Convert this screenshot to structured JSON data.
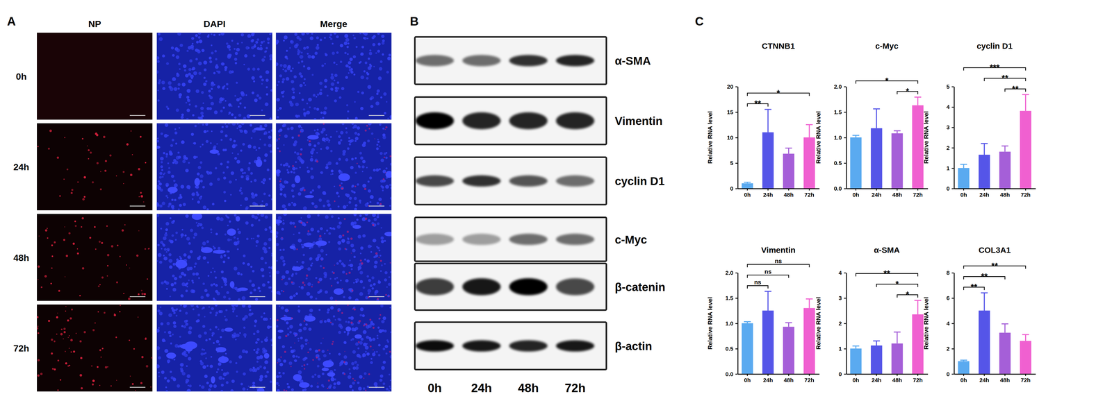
{
  "figure": {
    "panel_labels": [
      "A",
      "B",
      "C"
    ]
  },
  "panel_a": {
    "columns": [
      "NP",
      "DAPI",
      "Merge"
    ],
    "rows": [
      "0h",
      "24h",
      "48h",
      "72h"
    ]
  },
  "panel_b": {
    "lanes": [
      "0h",
      "24h",
      "48h",
      "72h"
    ],
    "proteins": [
      {
        "name": "α-SMA",
        "intensity": [
          0.55,
          0.55,
          0.8,
          0.85
        ]
      },
      {
        "name": "Vimentin",
        "intensity": [
          1,
          0.85,
          0.85,
          0.85
        ]
      },
      {
        "name": "cyclin D1",
        "intensity": [
          0.7,
          0.8,
          0.65,
          0.55
        ]
      },
      {
        "name": "c-Myc",
        "intensity": [
          0.35,
          0.35,
          0.55,
          0.55
        ]
      },
      {
        "name": "β-catenin",
        "intensity": [
          0.75,
          0.9,
          1,
          0.7
        ]
      },
      {
        "name": "β-actin",
        "intensity": [
          0.95,
          0.9,
          0.85,
          0.9
        ]
      }
    ]
  },
  "chart_data": [
    {
      "type": "bar",
      "title": "CTNNB1",
      "y_label": "Relative RNA level",
      "categories": [
        "0h",
        "24h",
        "48h",
        "72h"
      ],
      "values": [
        1.0,
        11.0,
        6.8,
        10.0
      ],
      "errors": [
        0.2,
        4.5,
        1.1,
        2.5
      ],
      "colors": [
        "#5aaaf0",
        "#5555e8",
        "#a55fd8",
        "#f060d0"
      ],
      "ylim": [
        0,
        20
      ],
      "yticks": [
        0,
        5,
        10,
        15,
        20
      ],
      "significance": [
        {
          "pair": [
            "0h",
            "24h"
          ],
          "label": "**"
        },
        {
          "pair": [
            "0h",
            "72h"
          ],
          "label": "*"
        }
      ]
    },
    {
      "type": "bar",
      "title": "c-Myc",
      "y_label": "Relative RNA level",
      "categories": [
        "0h",
        "24h",
        "48h",
        "72h"
      ],
      "values": [
        1.0,
        1.18,
        1.08,
        1.63
      ],
      "errors": [
        0.04,
        0.38,
        0.05,
        0.16
      ],
      "colors": [
        "#5aaaf0",
        "#5555e8",
        "#a55fd8",
        "#f060d0"
      ],
      "ylim": [
        0,
        2
      ],
      "yticks": [
        {
          "value": 0,
          "label": "0.0"
        },
        0.5,
        {
          "value": 1,
          "label": "1.0"
        },
        1.5,
        {
          "value": 2,
          "label": "2.0"
        }
      ],
      "significance": [
        {
          "pair": [
            "48h",
            "72h"
          ],
          "label": "*"
        },
        {
          "pair": [
            "0h",
            "72h"
          ],
          "label": "*"
        }
      ]
    },
    {
      "type": "bar",
      "title": "cyclin D1",
      "y_label": "Relative RNA level",
      "categories": [
        "0h",
        "24h",
        "48h",
        "72h"
      ],
      "values": [
        1.0,
        1.65,
        1.8,
        3.8
      ],
      "errors": [
        0.18,
        0.55,
        0.28,
        0.8
      ],
      "colors": [
        "#5aaaf0",
        "#5555e8",
        "#a55fd8",
        "#f060d0"
      ],
      "ylim": [
        0,
        5
      ],
      "yticks": [
        0,
        1,
        2,
        3,
        4,
        5
      ],
      "significance": [
        {
          "pair": [
            "48h",
            "72h"
          ],
          "label": "**"
        },
        {
          "pair": [
            "24h",
            "72h"
          ],
          "label": "**"
        },
        {
          "pair": [
            "0h",
            "72h"
          ],
          "label": "***"
        }
      ]
    },
    {
      "type": "bar",
      "title": "Vimentin",
      "y_label": "Relative RNA level",
      "categories": [
        "0h",
        "24h",
        "48h",
        "72h"
      ],
      "values": [
        1.0,
        1.25,
        0.93,
        1.3
      ],
      "errors": [
        0.03,
        0.38,
        0.08,
        0.18
      ],
      "colors": [
        "#5aaaf0",
        "#5555e8",
        "#a55fd8",
        "#f060d0"
      ],
      "ylim": [
        0,
        2
      ],
      "yticks": [
        {
          "value": 0,
          "label": "0.0"
        },
        0.5,
        {
          "value": 1,
          "label": "1.0"
        },
        1.5,
        {
          "value": 2,
          "label": "2.0"
        }
      ],
      "significance": [
        {
          "pair": [
            "0h",
            "24h"
          ],
          "label": "ns"
        },
        {
          "pair": [
            "0h",
            "48h"
          ],
          "label": "ns"
        },
        {
          "pair": [
            "0h",
            "72h"
          ],
          "label": "ns"
        }
      ]
    },
    {
      "type": "bar",
      "title": "α-SMA",
      "y_label": "Relative RNA level",
      "categories": [
        "0h",
        "24h",
        "48h",
        "72h"
      ],
      "values": [
        1.0,
        1.12,
        1.2,
        2.35
      ],
      "errors": [
        0.1,
        0.18,
        0.45,
        0.55
      ],
      "colors": [
        "#5aaaf0",
        "#5555e8",
        "#a55fd8",
        "#f060d0"
      ],
      "ylim": [
        0,
        4
      ],
      "yticks": [
        0,
        1,
        2,
        3,
        4
      ],
      "significance": [
        {
          "pair": [
            "48h",
            "72h"
          ],
          "label": "*"
        },
        {
          "pair": [
            "24h",
            "72h"
          ],
          "label": "*"
        },
        {
          "pair": [
            "0h",
            "72h"
          ],
          "label": "**"
        }
      ]
    },
    {
      "type": "bar",
      "title": "COL3A1",
      "y_label": "Relative RNA level",
      "categories": [
        "0h",
        "24h",
        "48h",
        "72h"
      ],
      "values": [
        1.0,
        5.0,
        3.25,
        2.6
      ],
      "errors": [
        0.08,
        1.4,
        0.7,
        0.5
      ],
      "colors": [
        "#5aaaf0",
        "#5555e8",
        "#a55fd8",
        "#f060d0"
      ],
      "ylim": [
        0,
        8
      ],
      "yticks": [
        0,
        2,
        4,
        6,
        8
      ],
      "significance": [
        {
          "pair": [
            "0h",
            "24h"
          ],
          "label": "**"
        },
        {
          "pair": [
            "0h",
            "48h"
          ],
          "label": "**"
        },
        {
          "pair": [
            "0h",
            "72h"
          ],
          "label": "**"
        }
      ]
    }
  ]
}
